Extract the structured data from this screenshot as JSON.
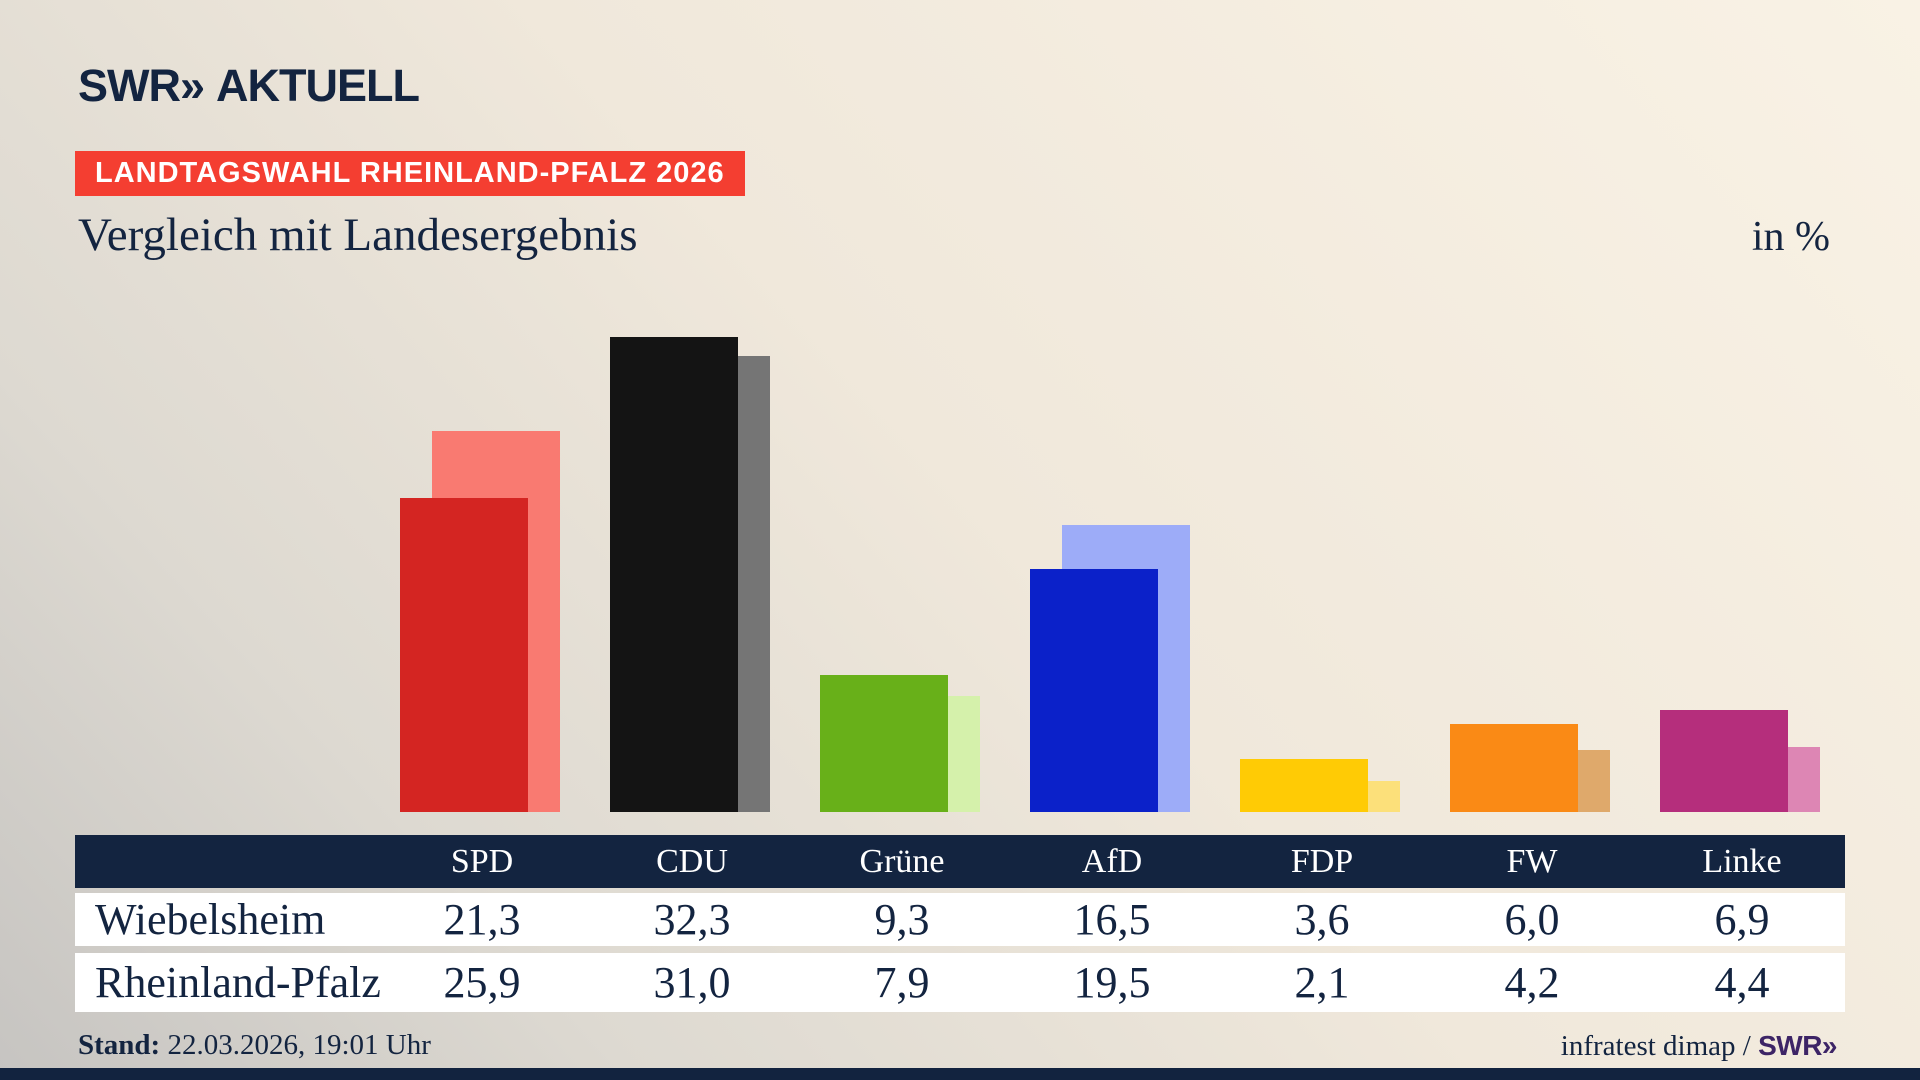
{
  "header": {
    "logo": {
      "brand": "SWR»",
      "product": "AKTUELL"
    },
    "badge": "LANDTAGSWAHL RHEINLAND-PFALZ 2026",
    "title": "Vergleich mit Landesergebnis",
    "unit": "in %"
  },
  "chart_data": {
    "type": "bar",
    "title": "Vergleich mit Landesergebnis",
    "xlabel": "",
    "ylabel": "in %",
    "ylim": [
      0,
      35
    ],
    "grid": false,
    "legend_position": "table-below-chart",
    "value_format": "german-comma-decimal",
    "bar_style": "paired-front-back-offset",
    "categories": [
      "SPD",
      "CDU",
      "Grüne",
      "AfD",
      "FDP",
      "FW",
      "Linke"
    ],
    "series": [
      {
        "name": "Wiebelsheim",
        "role": "front-bar",
        "values": [
          21.3,
          32.3,
          9.3,
          16.5,
          3.6,
          6.0,
          6.9
        ],
        "colors": [
          "#d42522",
          "#141414",
          "#68b019",
          "#0b21c9",
          "#ffcb05",
          "#fa8a15",
          "#b52e7c"
        ]
      },
      {
        "name": "Rheinland-Pfalz",
        "role": "back-bar",
        "values": [
          25.9,
          31.0,
          7.9,
          19.5,
          2.1,
          4.2,
          4.4
        ],
        "colors": [
          "#f97a71",
          "#757575",
          "#d5f1ab",
          "#9dacf8",
          "#fce07a",
          "#dfa96b",
          "#dd86b4"
        ]
      }
    ]
  },
  "table": {
    "columns": [
      "SPD",
      "CDU",
      "Grüne",
      "AfD",
      "FDP",
      "FW",
      "Linke"
    ],
    "rows": [
      {
        "label": "Wiebelsheim",
        "values": [
          "21,3",
          "32,3",
          "9,3",
          "16,5",
          "3,6",
          "6,0",
          "6,9"
        ]
      },
      {
        "label": "Rheinland-Pfalz",
        "values": [
          "25,9",
          "31,0",
          "7,9",
          "19,5",
          "2,1",
          "4,2",
          "4,4"
        ]
      }
    ]
  },
  "footer": {
    "stand_label": "Stand:",
    "stand_value": " 22.03.2026, 19:01 Uhr",
    "source_prefix": "infratest dimap / ",
    "source_brand": "SWR»"
  },
  "colors": {
    "navy": "#132440",
    "badge_bg": "#f43e31",
    "badge_text": "#ffffff",
    "table_header_bg": "#132440",
    "table_row_bg": "#ffffff",
    "bottom_bar": "#12233f",
    "source_brand": "#3d2466",
    "bg_light": "#f9f2e5",
    "bg_dark": "#c6c4c1"
  }
}
